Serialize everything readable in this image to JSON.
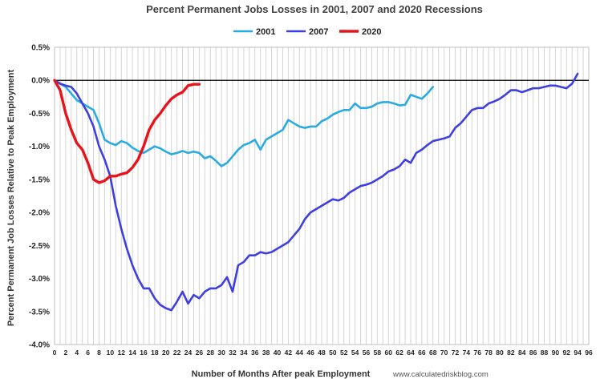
{
  "chart_data": {
    "type": "line",
    "title": "Percent Permanent Jobs Losses in 2001, 2007 and 2020 Recessions",
    "xlabel": "Number of Months After peak Employment",
    "ylabel": "Percent Permanent Job Losses Relative to Peak Employment",
    "source": "www.calculatedriskblog.com",
    "xlim": [
      0,
      96
    ],
    "ylim": [
      -4.0,
      0.5
    ],
    "x_ticks": [
      0,
      2,
      4,
      6,
      8,
      10,
      12,
      14,
      16,
      18,
      20,
      22,
      24,
      26,
      28,
      30,
      32,
      34,
      36,
      38,
      40,
      42,
      44,
      46,
      48,
      50,
      52,
      54,
      56,
      58,
      60,
      62,
      64,
      66,
      68,
      70,
      72,
      74,
      76,
      78,
      80,
      82,
      84,
      86,
      88,
      90,
      92,
      94,
      96
    ],
    "y_ticks": [
      0.5,
      0.0,
      -0.5,
      -1.0,
      -1.5,
      -2.0,
      -2.5,
      -3.0,
      -3.5,
      -4.0
    ],
    "y_tick_labels": [
      "0.5%",
      "0.0%",
      "-0.5%",
      "-1.0%",
      "-1.5%",
      "-2.0%",
      "-2.5%",
      "-3.0%",
      "-3.5%",
      "-4.0%"
    ],
    "legend_position": "top-center",
    "grid": "vertical",
    "series": [
      {
        "name": "2001",
        "color": "#29ABE2",
        "values": [
          0.0,
          -0.05,
          -0.1,
          -0.2,
          -0.3,
          -0.35,
          -0.4,
          -0.45,
          -0.65,
          -0.9,
          -0.95,
          -0.98,
          -0.92,
          -0.95,
          -1.02,
          -1.07,
          -1.1,
          -1.05,
          -1.0,
          -1.03,
          -1.08,
          -1.12,
          -1.1,
          -1.07,
          -1.1,
          -1.08,
          -1.1,
          -1.18,
          -1.15,
          -1.22,
          -1.3,
          -1.25,
          -1.15,
          -1.05,
          -0.98,
          -0.95,
          -0.9,
          -1.05,
          -0.9,
          -0.85,
          -0.8,
          -0.75,
          -0.6,
          -0.65,
          -0.7,
          -0.72,
          -0.7,
          -0.7,
          -0.62,
          -0.58,
          -0.52,
          -0.48,
          -0.45,
          -0.45,
          -0.35,
          -0.42,
          -0.42,
          -0.4,
          -0.35,
          -0.33,
          -0.33,
          -0.35,
          -0.38,
          -0.37,
          -0.22,
          -0.25,
          -0.28,
          -0.2,
          -0.1
        ]
      },
      {
        "name": "2007",
        "color": "#3F3FE0",
        "values": [
          0.0,
          -0.05,
          -0.08,
          -0.1,
          -0.2,
          -0.35,
          -0.5,
          -0.7,
          -1.0,
          -1.2,
          -1.45,
          -1.9,
          -2.25,
          -2.55,
          -2.8,
          -3.0,
          -3.15,
          -3.15,
          -3.3,
          -3.4,
          -3.45,
          -3.48,
          -3.35,
          -3.2,
          -3.38,
          -3.25,
          -3.3,
          -3.2,
          -3.15,
          -3.15,
          -3.1,
          -2.98,
          -3.2,
          -2.8,
          -2.75,
          -2.65,
          -2.65,
          -2.6,
          -2.62,
          -2.6,
          -2.55,
          -2.5,
          -2.45,
          -2.35,
          -2.25,
          -2.1,
          -2.0,
          -1.95,
          -1.9,
          -1.85,
          -1.8,
          -1.82,
          -1.78,
          -1.7,
          -1.65,
          -1.6,
          -1.58,
          -1.55,
          -1.5,
          -1.45,
          -1.38,
          -1.35,
          -1.3,
          -1.2,
          -1.25,
          -1.1,
          -1.05,
          -0.98,
          -0.92,
          -0.9,
          -0.88,
          -0.85,
          -0.72,
          -0.65,
          -0.55,
          -0.45,
          -0.42,
          -0.42,
          -0.35,
          -0.32,
          -0.28,
          -0.22,
          -0.15,
          -0.15,
          -0.18,
          -0.15,
          -0.12,
          -0.12,
          -0.1,
          -0.08,
          -0.08,
          -0.1,
          -0.12,
          -0.05,
          0.1
        ]
      },
      {
        "name": "2020",
        "color": "#E8141B",
        "values": [
          0.0,
          -0.15,
          -0.5,
          -0.75,
          -0.95,
          -1.05,
          -1.25,
          -1.5,
          -1.55,
          -1.52,
          -1.45,
          -1.45,
          -1.42,
          -1.4,
          -1.32,
          -1.2,
          -1.0,
          -0.75,
          -0.6,
          -0.5,
          -0.38,
          -0.28,
          -0.22,
          -0.18,
          -0.08,
          -0.06,
          -0.06
        ]
      }
    ]
  }
}
